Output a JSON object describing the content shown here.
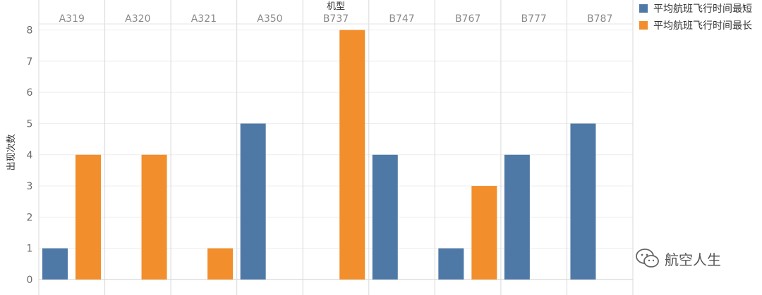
{
  "chart_data": {
    "type": "bar",
    "xlabel": "机型",
    "ylabel": "出现次数",
    "categories": [
      "A319",
      "A320",
      "A321",
      "A350",
      "B737",
      "B747",
      "B767",
      "B777",
      "B787"
    ],
    "series": [
      {
        "name": "平均航班飞行时间最短",
        "color": "#4e79a7",
        "values": [
          1,
          0,
          0,
          5,
          0,
          4,
          1,
          4,
          5
        ]
      },
      {
        "name": "平均航班飞行时间最长",
        "color": "#f28e2b",
        "values": [
          4,
          4,
          1,
          0,
          8,
          0,
          3,
          0,
          0
        ]
      }
    ],
    "ylim": [
      0,
      8.6
    ],
    "yticks": [
      0,
      1,
      2,
      3,
      4,
      5,
      6,
      7,
      8
    ],
    "grid": true,
    "legend_position": "top-right"
  },
  "watermark": {
    "text": "航空人生",
    "icon": "wechat-icon"
  }
}
